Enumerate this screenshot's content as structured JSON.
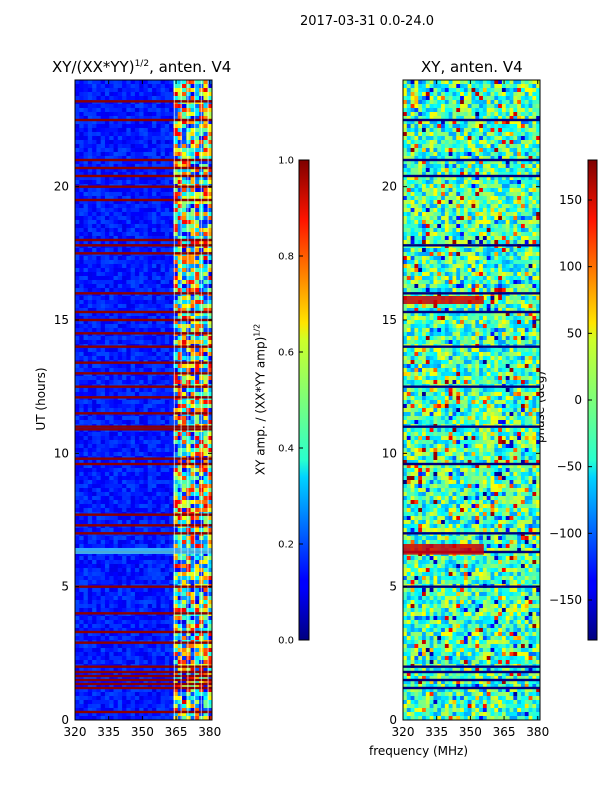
{
  "figure": {
    "suptitle": "2017-03-31 0.0-24.0",
    "shared_xlabel": "frequency (MHz)"
  },
  "chart_data": [
    {
      "type": "heatmap",
      "title_main": "XY/(XX*YY)",
      "title_sup": "1/2",
      "title_suffix": ", anten. V4",
      "xlabel": "",
      "ylabel": "UT (hours)",
      "xlim": [
        320,
        381
      ],
      "ylim": [
        0,
        24
      ],
      "xticks": [
        "320",
        "335",
        "350",
        "365",
        "380"
      ],
      "xtick_values": [
        320,
        335,
        350,
        365,
        380
      ],
      "yticks": [
        "0",
        "5",
        "10",
        "15",
        "20"
      ],
      "ytick_values": [
        0,
        5,
        10,
        15,
        20
      ],
      "colorbar": {
        "label_main": "XY amp. / (XX*YY amp)",
        "label_sup": "1/2",
        "range": [
          0.0,
          1.0
        ],
        "ticks": [
          "0.0",
          "0.2",
          "0.4",
          "0.6",
          "0.8",
          "1.0"
        ],
        "tick_values": [
          0.0,
          0.2,
          0.4,
          0.6,
          0.8,
          1.0
        ],
        "colormap": "jet"
      },
      "rfi_rows_hours": [
        0.3,
        1.2,
        1.35,
        1.5,
        1.65,
        1.8,
        2.0,
        2.9,
        3.3,
        4.0,
        5.0,
        6.3,
        7.0,
        7.3,
        7.7,
        9.6,
        9.8,
        10.9,
        11.0,
        11.5,
        12.1,
        12.5,
        13.0,
        13.4,
        14.0,
        14.5,
        15.0,
        15.3,
        16.0,
        17.5,
        17.8,
        18.0,
        19.5,
        20.0,
        20.4,
        20.7,
        21.0,
        22.5,
        23.2
      ],
      "high_coherence_band_mhz": [
        363,
        381
      ],
      "value_range_main": [
        0.0,
        0.3
      ]
    },
    {
      "type": "heatmap",
      "title": "XY, anten. V4",
      "xlabel": "",
      "ylabel": "",
      "xlim": [
        320,
        381
      ],
      "ylim": [
        0,
        24
      ],
      "xticks": [
        "320",
        "335",
        "350",
        "365",
        "380"
      ],
      "xtick_values": [
        320,
        335,
        350,
        365,
        380
      ],
      "yticks": [
        "0",
        "5",
        "10",
        "15",
        "20"
      ],
      "ytick_values": [
        0,
        5,
        10,
        15,
        20
      ],
      "colorbar": {
        "label": "phase (deg)",
        "range": [
          -180,
          180
        ],
        "ticks": [
          "−150",
          "−100",
          "−50",
          "0",
          "50",
          "100",
          "150"
        ],
        "tick_values": [
          -150,
          -100,
          -50,
          0,
          50,
          100,
          150
        ],
        "colormap": "jet"
      },
      "rfi_rows_hours": [
        1.2,
        1.5,
        1.8,
        2.0,
        5.0,
        6.3,
        7.0,
        9.6,
        11.0,
        12.5,
        14.0,
        15.3,
        16.0,
        17.8,
        20.4,
        21.0,
        22.5
      ],
      "strong_band_hours": [
        [
          15.6,
          15.9
        ],
        [
          6.2,
          6.6
        ]
      ]
    }
  ]
}
